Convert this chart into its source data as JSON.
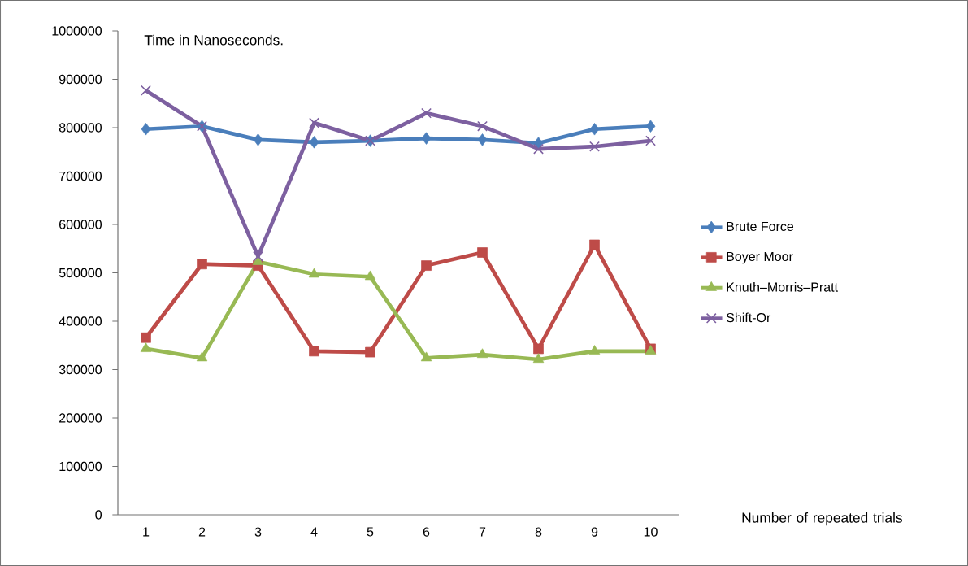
{
  "chart_data": {
    "type": "line",
    "ylabel": "Time in Nanoseconds.",
    "xlabel": "Number of repeated trials",
    "categories": [
      "1",
      "2",
      "3",
      "4",
      "5",
      "6",
      "7",
      "8",
      "9",
      "10"
    ],
    "ylim": [
      0,
      1000000
    ],
    "yticks": [
      0,
      100000,
      200000,
      300000,
      400000,
      500000,
      600000,
      700000,
      800000,
      900000,
      1000000
    ],
    "grid": false,
    "legend": "right",
    "series": [
      {
        "name": "Brute Force",
        "color": "#4a7ebb",
        "marker": "diamond",
        "values": [
          797000,
          803000,
          775000,
          770000,
          773000,
          778000,
          775000,
          768000,
          797000,
          803000
        ]
      },
      {
        "name": "Boyer Moor",
        "color": "#be4b48",
        "marker": "square",
        "values": [
          366000,
          518000,
          515000,
          338000,
          336000,
          515000,
          542000,
          343000,
          558000,
          343000
        ]
      },
      {
        "name": "Knuth–Morris–Pratt",
        "color": "#98b954",
        "marker": "triangle",
        "values": [
          343000,
          324000,
          523000,
          497000,
          492000,
          324000,
          331000,
          321000,
          338000,
          338000
        ]
      },
      {
        "name": "Shift-Or",
        "color": "#7d60a0",
        "marker": "cross",
        "values": [
          877000,
          803000,
          534000,
          810000,
          773000,
          830000,
          803000,
          756000,
          761000,
          773000
        ]
      }
    ]
  }
}
